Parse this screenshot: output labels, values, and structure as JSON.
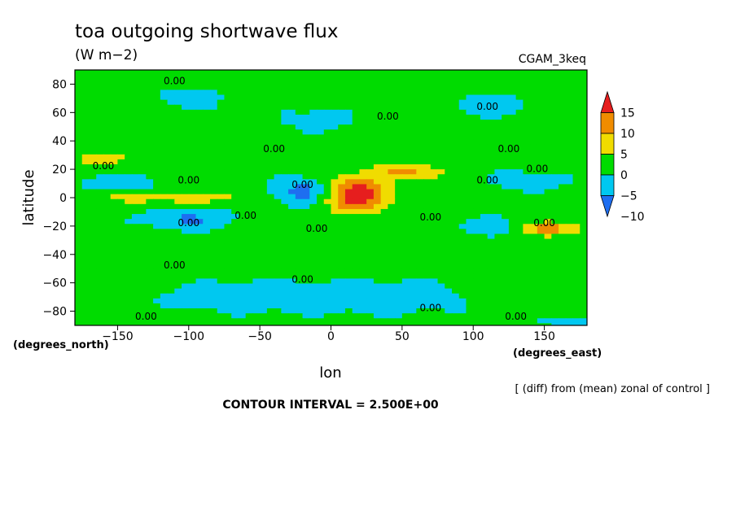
{
  "chart_data": {
    "type": "heatmap",
    "title": "toa outgoing shortwave flux",
    "units": "(W m−2)",
    "experiment": "CGAM_3keq",
    "xlabel": "lon",
    "ylabel": "latitude",
    "x_unit_label": "(degrees_east)",
    "y_unit_label": "(degrees_north)",
    "xlim": [
      -180,
      180
    ],
    "ylim": [
      -90,
      90
    ],
    "x_ticks": [
      {
        "value": -150,
        "label": "−150"
      },
      {
        "value": -100,
        "label": "−100"
      },
      {
        "value": -50,
        "label": "−50"
      },
      {
        "value": 0,
        "label": "0"
      },
      {
        "value": 50,
        "label": "50"
      },
      {
        "value": 100,
        "label": "100"
      },
      {
        "value": 150,
        "label": "150"
      }
    ],
    "y_ticks": [
      {
        "value": 80,
        "label": "80"
      },
      {
        "value": 60,
        "label": "60"
      },
      {
        "value": 40,
        "label": "40"
      },
      {
        "value": 20,
        "label": "20"
      },
      {
        "value": 0,
        "label": "0"
      },
      {
        "value": -20,
        "label": "−20"
      },
      {
        "value": -40,
        "label": "−40"
      },
      {
        "value": -60,
        "label": "−60"
      },
      {
        "value": -80,
        "label": "−80"
      }
    ],
    "colorbar": {
      "levels": [
        {
          "label": "15",
          "value": 15
        },
        {
          "label": "10",
          "value": 10
        },
        {
          "label": "5",
          "value": 5
        },
        {
          "label": "0",
          "value": 0
        },
        {
          "label": "−5",
          "value": -5
        },
        {
          "label": "−10",
          "value": -10
        }
      ],
      "colors": [
        "#1e6ef0",
        "#00c8f0",
        "#00dc00",
        "#f0dc00",
        "#f08c00",
        "#e61e1e"
      ]
    },
    "contour_label": "0.00",
    "contour_interval_text": "CONTOUR INTERVAL = 2.500E+00",
    "footnote": "[ (diff) from (mean) zonal of control ]",
    "field_features": [
      {
        "lon": 20,
        "lat": 0,
        "value": 15
      },
      {
        "lon": -100,
        "lat": 0,
        "value": 7
      },
      {
        "lon": -20,
        "lat": 5,
        "value": -10
      },
      {
        "lon": -100,
        "lat": -15,
        "value": -8
      },
      {
        "lon": 140,
        "lat": 10,
        "value": -8
      },
      {
        "lon": 150,
        "lat": -20,
        "value": 10
      },
      {
        "lon": 50,
        "lat": 20,
        "value": 10
      }
    ]
  }
}
